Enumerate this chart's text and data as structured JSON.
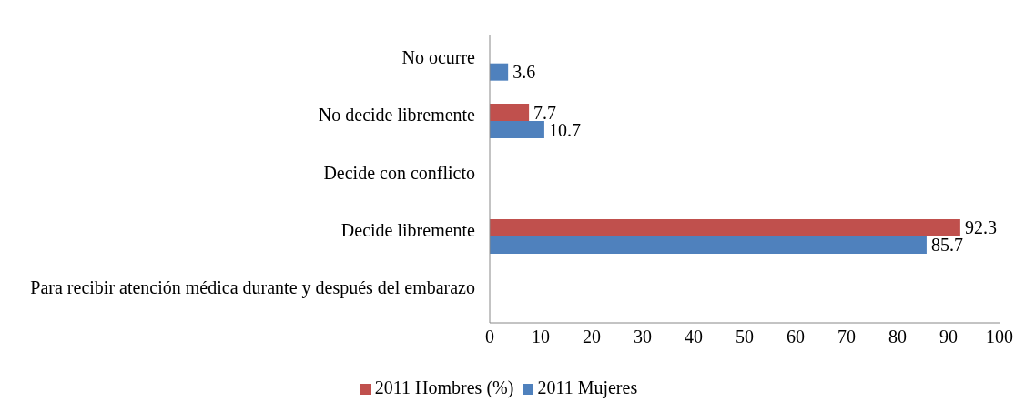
{
  "chart_data": {
    "type": "bar",
    "orientation": "horizontal",
    "categories": [
      "No ocurre",
      "No decide libremente",
      "Decide con conflicto",
      "Decide libremente",
      "Para recibir atención médica durante y después del embarazo"
    ],
    "series": [
      {
        "name": "2011 Hombres (%)",
        "color": "#c0504d",
        "values": [
          null,
          7.7,
          null,
          92.3,
          null
        ]
      },
      {
        "name": "2011 Mujeres",
        "color": "#4f81bd",
        "values": [
          3.6,
          10.7,
          null,
          85.7,
          null
        ]
      }
    ],
    "xlim": [
      0,
      100
    ],
    "xticks": [
      0,
      10,
      20,
      30,
      40,
      50,
      60,
      70,
      80,
      90,
      100
    ],
    "grid": false,
    "legend": "bottom",
    "data_labels": true
  }
}
